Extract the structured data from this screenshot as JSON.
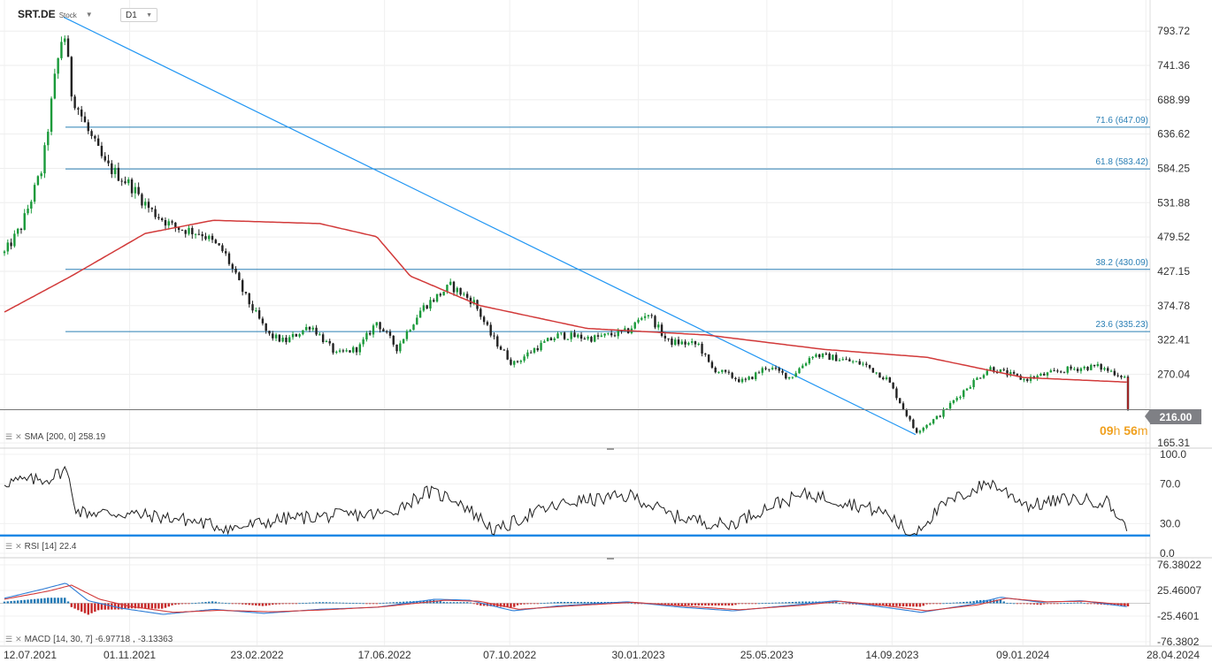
{
  "header": {
    "symbol": "SRT.DE",
    "asset_type": "Stock",
    "timeframe": "D1"
  },
  "price_tag": "216.00",
  "countdown": {
    "hours": "09",
    "hours_unit": "h",
    "minutes": "56",
    "minutes_unit": "m"
  },
  "colors": {
    "up_candle": "#1a9a3a",
    "down_candle": "#222222",
    "sma": "#d23a3a",
    "trendline": "#2196f3",
    "fib": "#2a7fb5",
    "rsi_line": "#1f1f1f",
    "rsi_level": "#1e88e5",
    "macd_line": "#2e7dd6",
    "macd_signal": "#d23a3a",
    "hist_pos": "#1f77b4",
    "hist_neg": "#c62828",
    "price_tag_bg": "#7f8085"
  },
  "chart_data": [
    {
      "type": "candlestick",
      "title": "SRT.DE",
      "x_tick_labels": [
        "12.07.2021",
        "01.11.2021",
        "23.02.2022",
        "17.06.2022",
        "07.10.2022",
        "30.01.2023",
        "25.05.2023",
        "14.09.2023",
        "09.01.2024",
        "28.04.2024"
      ],
      "y_tick_labels": [
        "793.72",
        "741.36",
        "688.99",
        "636.62",
        "584.25",
        "531.88",
        "479.52",
        "427.15",
        "374.78",
        "322.41",
        "270.04",
        "165.31"
      ],
      "ylim": [
        160,
        825
      ],
      "price_anchors": [
        {
          "date": "2021-07-12",
          "close": 455
        },
        {
          "date": "2021-07-27",
          "close": 495
        },
        {
          "date": "2021-08-15",
          "close": 585
        },
        {
          "date": "2021-08-26",
          "close": 720
        },
        {
          "date": "2021-09-03",
          "close": 800
        },
        {
          "date": "2021-09-10",
          "close": 700
        },
        {
          "date": "2021-09-25",
          "close": 640
        },
        {
          "date": "2021-10-10",
          "close": 590
        },
        {
          "date": "2021-11-01",
          "close": 560
        },
        {
          "date": "2021-11-20",
          "close": 520
        },
        {
          "date": "2021-12-10",
          "close": 495
        },
        {
          "date": "2022-01-05",
          "close": 485
        },
        {
          "date": "2022-01-25",
          "close": 455
        },
        {
          "date": "2022-02-12",
          "close": 390
        },
        {
          "date": "2022-03-05",
          "close": 330
        },
        {
          "date": "2022-03-20",
          "close": 320
        },
        {
          "date": "2022-04-12",
          "close": 345
        },
        {
          "date": "2022-05-05",
          "close": 300
        },
        {
          "date": "2022-05-25",
          "close": 310
        },
        {
          "date": "2022-06-10",
          "close": 350
        },
        {
          "date": "2022-06-28",
          "close": 310
        },
        {
          "date": "2022-07-20",
          "close": 370
        },
        {
          "date": "2022-08-15",
          "close": 405
        },
        {
          "date": "2022-09-05",
          "close": 380
        },
        {
          "date": "2022-09-20",
          "close": 330
        },
        {
          "date": "2022-10-10",
          "close": 285
        },
        {
          "date": "2022-10-30",
          "close": 310
        },
        {
          "date": "2022-11-20",
          "close": 330
        },
        {
          "date": "2022-12-20",
          "close": 325
        },
        {
          "date": "2023-01-20",
          "close": 335
        },
        {
          "date": "2023-02-07",
          "close": 365
        },
        {
          "date": "2023-02-25",
          "close": 320
        },
        {
          "date": "2023-03-25",
          "close": 315
        },
        {
          "date": "2023-04-05",
          "close": 280
        },
        {
          "date": "2023-05-05",
          "close": 258
        },
        {
          "date": "2023-05-25",
          "close": 282
        },
        {
          "date": "2023-06-15",
          "close": 265
        },
        {
          "date": "2023-07-05",
          "close": 300
        },
        {
          "date": "2023-07-25",
          "close": 295
        },
        {
          "date": "2023-08-20",
          "close": 285
        },
        {
          "date": "2023-09-10",
          "close": 262
        },
        {
          "date": "2023-09-25",
          "close": 215
        },
        {
          "date": "2023-10-05",
          "close": 182
        },
        {
          "date": "2023-10-25",
          "close": 205
        },
        {
          "date": "2023-11-20",
          "close": 250
        },
        {
          "date": "2023-12-10",
          "close": 280
        },
        {
          "date": "2024-01-10",
          "close": 262
        },
        {
          "date": "2024-01-30",
          "close": 270
        },
        {
          "date": "2024-02-20",
          "close": 278
        },
        {
          "date": "2024-03-15",
          "close": 282
        },
        {
          "date": "2024-04-01",
          "close": 272
        },
        {
          "date": "2024-04-10",
          "close": 265
        },
        {
          "date": "2024-04-12",
          "close": 216
        }
      ],
      "last_price": 216.0,
      "sma": {
        "label": "SMA",
        "params": "[200, 0]",
        "value": "258.19",
        "anchors": [
          {
            "date": "2021-07-12",
            "value": 365
          },
          {
            "date": "2021-09-10",
            "value": 420
          },
          {
            "date": "2021-11-15",
            "value": 485
          },
          {
            "date": "2022-01-15",
            "value": 505
          },
          {
            "date": "2022-04-20",
            "value": 500
          },
          {
            "date": "2022-06-10",
            "value": 480
          },
          {
            "date": "2022-07-10",
            "value": 420
          },
          {
            "date": "2022-09-10",
            "value": 375
          },
          {
            "date": "2022-12-15",
            "value": 340
          },
          {
            "date": "2023-04-01",
            "value": 330
          },
          {
            "date": "2023-07-15",
            "value": 308
          },
          {
            "date": "2023-10-15",
            "value": 296
          },
          {
            "date": "2024-01-10",
            "value": 265
          },
          {
            "date": "2024-04-12",
            "value": 258
          }
        ]
      },
      "fib_levels": [
        {
          "label": "71.6 (647.09)",
          "value": 647.09
        },
        {
          "label": "61.8 (583.42)",
          "value": 583.42
        },
        {
          "label": "38.2 (430.09)",
          "value": 430.09
        },
        {
          "label": "23.6 (335.23)",
          "value": 335.23
        }
      ],
      "trendline": [
        {
          "date": "2021-09-03",
          "value": 815
        },
        {
          "date": "2023-10-05",
          "value": 178
        }
      ]
    },
    {
      "type": "line",
      "title": "RSI",
      "label": "RSI",
      "params": "[14]",
      "value": "22.4",
      "y_tick_labels": [
        "100.0",
        "70.0",
        "30.0",
        "0.0"
      ],
      "ylim": [
        0,
        100
      ],
      "level": 18,
      "anchors": [
        {
          "date": "2021-07-12",
          "value": 72
        },
        {
          "date": "2021-08-20",
          "value": 75
        },
        {
          "date": "2021-09-05",
          "value": 85
        },
        {
          "date": "2021-09-15",
          "value": 42
        },
        {
          "date": "2021-10-30",
          "value": 40
        },
        {
          "date": "2021-12-15",
          "value": 35
        },
        {
          "date": "2022-02-01",
          "value": 25
        },
        {
          "date": "2022-03-20",
          "value": 35
        },
        {
          "date": "2022-05-01",
          "value": 38
        },
        {
          "date": "2022-06-20",
          "value": 40
        },
        {
          "date": "2022-07-25",
          "value": 62
        },
        {
          "date": "2022-08-20",
          "value": 55
        },
        {
          "date": "2022-09-25",
          "value": 22
        },
        {
          "date": "2022-10-25",
          "value": 40
        },
        {
          "date": "2022-12-01",
          "value": 52
        },
        {
          "date": "2023-01-25",
          "value": 58
        },
        {
          "date": "2023-03-01",
          "value": 38
        },
        {
          "date": "2023-04-20",
          "value": 28
        },
        {
          "date": "2023-06-01",
          "value": 50
        },
        {
          "date": "2023-07-01",
          "value": 60
        },
        {
          "date": "2023-08-10",
          "value": 50
        },
        {
          "date": "2023-09-10",
          "value": 40
        },
        {
          "date": "2023-09-30",
          "value": 18
        },
        {
          "date": "2023-11-01",
          "value": 50
        },
        {
          "date": "2023-12-10",
          "value": 72
        },
        {
          "date": "2024-01-15",
          "value": 48
        },
        {
          "date": "2024-02-20",
          "value": 55
        },
        {
          "date": "2024-03-25",
          "value": 52
        },
        {
          "date": "2024-04-12",
          "value": 22.4
        }
      ]
    },
    {
      "type": "line",
      "title": "MACD",
      "label": "MACD",
      "params": "[14, 30, 7]",
      "macd_value": "-6.97718",
      "signal_value": "-3.13363",
      "y_tick_labels": [
        "76.38022",
        "25.46007",
        "-25.4601",
        "-76.3802"
      ],
      "ylim": [
        -76.3802,
        76.38022
      ],
      "macd_anchors": [
        {
          "date": "2021-07-12",
          "value": 10
        },
        {
          "date": "2021-08-15",
          "value": 28
        },
        {
          "date": "2021-09-05",
          "value": 40
        },
        {
          "date": "2021-09-25",
          "value": 5
        },
        {
          "date": "2021-10-25",
          "value": -10
        },
        {
          "date": "2021-12-01",
          "value": -22
        },
        {
          "date": "2022-01-15",
          "value": -12
        },
        {
          "date": "2022-03-01",
          "value": -20
        },
        {
          "date": "2022-04-20",
          "value": -12
        },
        {
          "date": "2022-06-10",
          "value": -8
        },
        {
          "date": "2022-08-01",
          "value": 8
        },
        {
          "date": "2022-09-01",
          "value": 6
        },
        {
          "date": "2022-10-10",
          "value": -15
        },
        {
          "date": "2022-11-20",
          "value": -5
        },
        {
          "date": "2023-01-20",
          "value": 3
        },
        {
          "date": "2023-03-10",
          "value": -8
        },
        {
          "date": "2023-04-25",
          "value": -15
        },
        {
          "date": "2023-06-20",
          "value": -3
        },
        {
          "date": "2023-07-25",
          "value": 5
        },
        {
          "date": "2023-09-01",
          "value": -6
        },
        {
          "date": "2023-10-10",
          "value": -18
        },
        {
          "date": "2023-11-25",
          "value": -2
        },
        {
          "date": "2023-12-20",
          "value": 12
        },
        {
          "date": "2024-01-25",
          "value": 2
        },
        {
          "date": "2024-03-01",
          "value": 5
        },
        {
          "date": "2024-04-12",
          "value": -6.97718
        }
      ],
      "signal_anchors": [
        {
          "date": "2021-07-12",
          "value": 8
        },
        {
          "date": "2021-08-20",
          "value": 24
        },
        {
          "date": "2021-09-10",
          "value": 36
        },
        {
          "date": "2021-10-05",
          "value": 8
        },
        {
          "date": "2021-11-01",
          "value": -6
        },
        {
          "date": "2021-12-10",
          "value": -18
        },
        {
          "date": "2022-01-20",
          "value": -14
        },
        {
          "date": "2022-03-10",
          "value": -17
        },
        {
          "date": "2022-04-25",
          "value": -13
        },
        {
          "date": "2022-06-15",
          "value": -7
        },
        {
          "date": "2022-08-10",
          "value": 6
        },
        {
          "date": "2022-09-10",
          "value": 4
        },
        {
          "date": "2022-10-15",
          "value": -12
        },
        {
          "date": "2022-11-25",
          "value": -6
        },
        {
          "date": "2023-01-25",
          "value": 2
        },
        {
          "date": "2023-03-15",
          "value": -6
        },
        {
          "date": "2023-04-30",
          "value": -13
        },
        {
          "date": "2023-06-25",
          "value": -4
        },
        {
          "date": "2023-07-30",
          "value": 4
        },
        {
          "date": "2023-09-05",
          "value": -4
        },
        {
          "date": "2023-10-15",
          "value": -15
        },
        {
          "date": "2023-11-30",
          "value": -3
        },
        {
          "date": "2023-12-25",
          "value": 10
        },
        {
          "date": "2024-01-30",
          "value": 3
        },
        {
          "date": "2024-03-05",
          "value": 4
        },
        {
          "date": "2024-04-12",
          "value": -3.13363
        }
      ]
    }
  ],
  "icons": {
    "menu": "menu-icon",
    "close": "close-icon",
    "dropdown": "chevron-down-icon"
  }
}
